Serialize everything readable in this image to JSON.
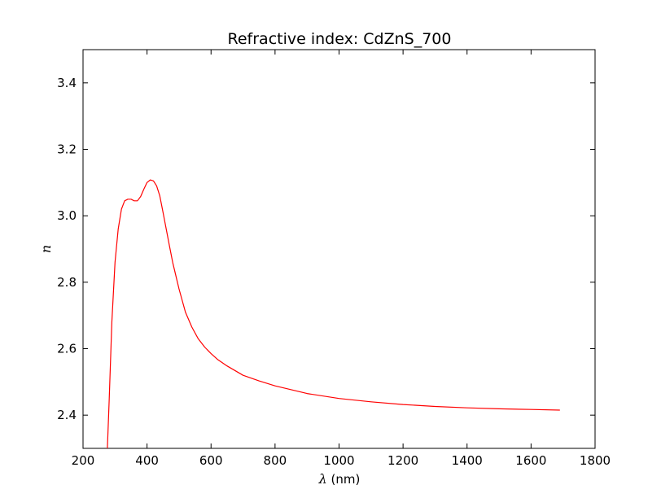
{
  "chart_data": {
    "type": "line",
    "title": "Refractive index: CdZnS_700",
    "xlabel_symbol": "λ",
    "xlabel_unit": "(nm)",
    "ylabel": "n",
    "xlim": [
      200,
      1800
    ],
    "ylim": [
      2.3,
      3.5
    ],
    "xticks": [
      200,
      400,
      600,
      800,
      1000,
      1200,
      1400,
      1600,
      1800
    ],
    "yticks": [
      2.4,
      2.6,
      2.8,
      3.0,
      3.2,
      3.4
    ],
    "ytick_labels": [
      "2.4",
      "2.6",
      "2.8",
      "3.0",
      "3.2",
      "3.4"
    ],
    "grid": false,
    "series": [
      {
        "color": "#ff0000",
        "x": [
          276,
          282,
          290,
          300,
          310,
          320,
          330,
          340,
          350,
          360,
          370,
          380,
          390,
          400,
          410,
          420,
          430,
          440,
          450,
          460,
          470,
          480,
          490,
          500,
          520,
          540,
          560,
          580,
          600,
          620,
          650,
          700,
          750,
          800,
          900,
          1000,
          1100,
          1200,
          1300,
          1400,
          1500,
          1600,
          1690
        ],
        "y": [
          2.3,
          2.45,
          2.68,
          2.86,
          2.96,
          3.02,
          3.045,
          3.05,
          3.05,
          3.045,
          3.045,
          3.058,
          3.08,
          3.1,
          3.108,
          3.105,
          3.09,
          3.06,
          3.01,
          2.96,
          2.91,
          2.86,
          2.82,
          2.78,
          2.71,
          2.665,
          2.63,
          2.605,
          2.585,
          2.568,
          2.548,
          2.52,
          2.503,
          2.488,
          2.465,
          2.45,
          2.44,
          2.432,
          2.426,
          2.422,
          2.419,
          2.417,
          2.415
        ]
      }
    ]
  }
}
